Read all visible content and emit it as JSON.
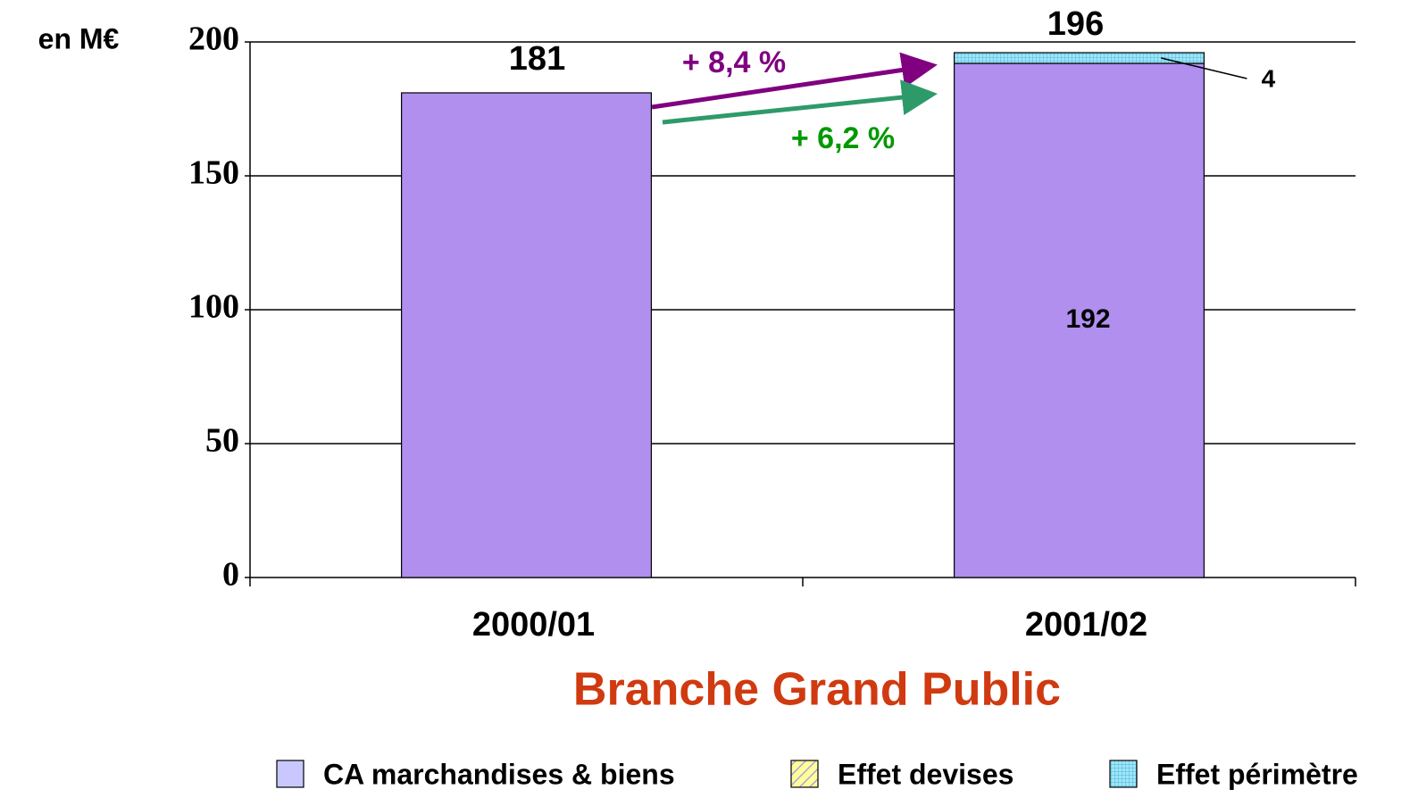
{
  "chart_data": {
    "type": "bar",
    "stacked": true,
    "title": "Branche Grand Public",
    "y_label": "en M€",
    "categories": [
      "2000/01",
      "2001/02"
    ],
    "series": [
      {
        "name": "CA marchandises & biens",
        "color": "#b08fef",
        "pattern": "solid",
        "values": [
          181,
          192
        ]
      },
      {
        "name": "Effet devises",
        "color": "#ffff99",
        "pattern": "diagonal",
        "values": [
          null,
          null
        ]
      },
      {
        "name": "Effet périmètre",
        "color": "#9ee6f7",
        "pattern": "grid",
        "values": [
          null,
          4
        ]
      }
    ],
    "totals": [
      null,
      196
    ],
    "annotations": [
      {
        "text": "+ 8,4 %",
        "color": "#800080"
      },
      {
        "text": "+ 6,2 %",
        "color": "#009900"
      }
    ],
    "ylim": [
      0,
      200
    ],
    "yticks": [
      0,
      50,
      100,
      150,
      200
    ],
    "grid": true,
    "legend": "bottom"
  }
}
